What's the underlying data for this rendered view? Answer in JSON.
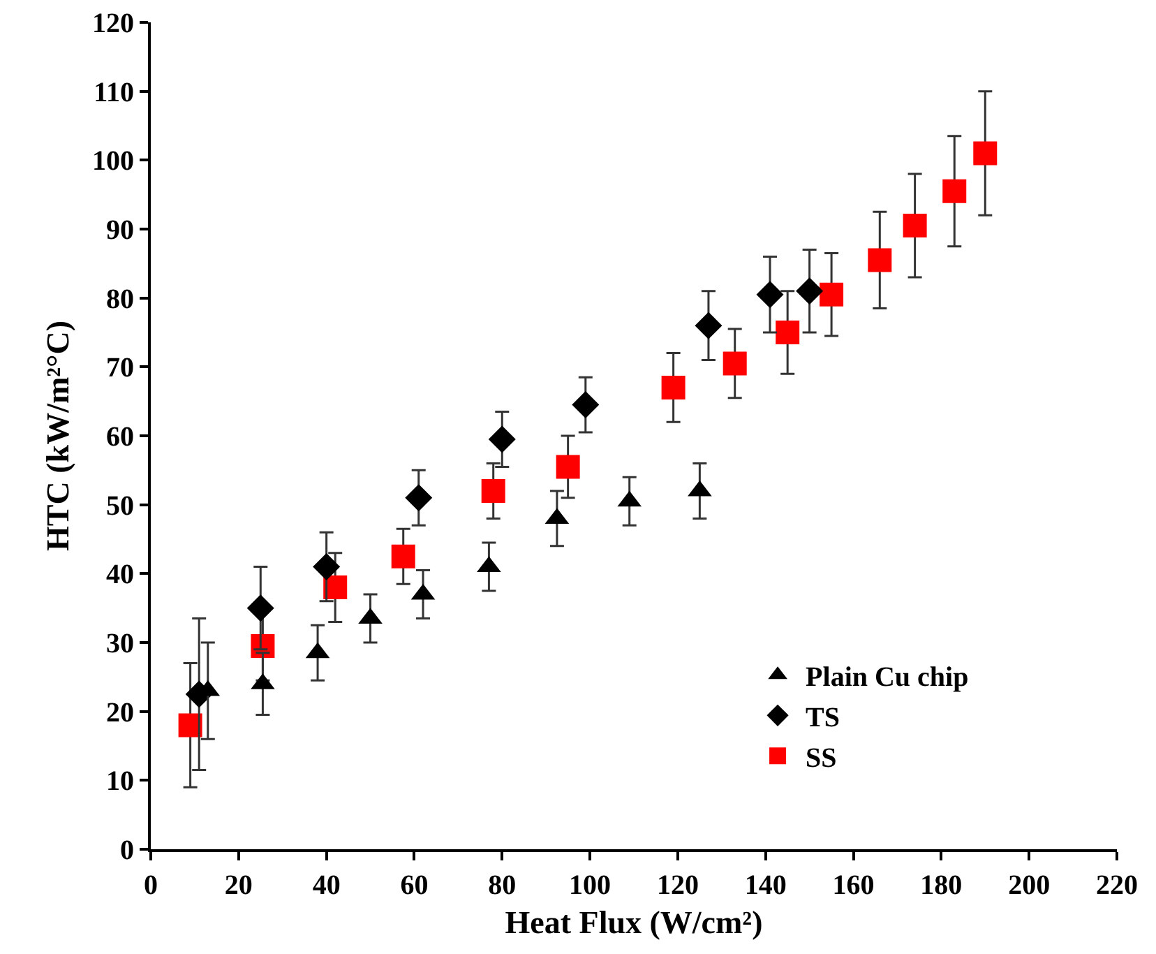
{
  "chart_data": {
    "type": "scatter",
    "xlabel": "Heat Flux (W/cm²)",
    "ylabel": "HTC (kW/m²°C)",
    "xlim": [
      0,
      220
    ],
    "xticks": [
      0,
      20,
      40,
      60,
      80,
      100,
      120,
      140,
      160,
      180,
      200,
      220
    ],
    "ylim": [
      0,
      120
    ],
    "yticks": [
      0,
      10,
      20,
      30,
      40,
      50,
      60,
      70,
      80,
      90,
      100,
      110,
      120
    ],
    "grid": false,
    "legend": "bottom right",
    "series": [
      {
        "name": "Plain Cu chip",
        "color": "#000000",
        "marker": "triangle",
        "x": [
          13,
          25.5,
          38,
          50,
          62,
          77,
          92.5,
          109,
          125
        ],
        "values": [
          23,
          24,
          28.5,
          33.5,
          37,
          41,
          48,
          50.5,
          52
        ],
        "errors": [
          7,
          4.5,
          4,
          3.5,
          3.5,
          3.5,
          4,
          3.5,
          4
        ]
      },
      {
        "name": "TS",
        "color": "#000000",
        "marker": "diamond",
        "x": [
          11,
          25,
          40,
          61,
          80,
          99,
          127,
          141,
          150
        ],
        "values": [
          22.5,
          35,
          41,
          51,
          59.5,
          64.5,
          76,
          80.5,
          81
        ],
        "errors": [
          11,
          6,
          5,
          4,
          4,
          4,
          5,
          5.5,
          6
        ]
      },
      {
        "name": "SS",
        "color": "#ff0000",
        "marker": "square",
        "x": [
          9,
          25.5,
          42,
          57.5,
          78,
          95,
          119,
          133,
          145,
          155,
          166,
          174,
          183,
          190
        ],
        "values": [
          18,
          29.5,
          38,
          42.5,
          52,
          55.5,
          67,
          70.5,
          75,
          80.5,
          85.5,
          90.5,
          95.5,
          101
        ],
        "errors": [
          9,
          5,
          5,
          4,
          4,
          4.5,
          5,
          5,
          6,
          6,
          7,
          7.5,
          8,
          9
        ]
      }
    ]
  }
}
